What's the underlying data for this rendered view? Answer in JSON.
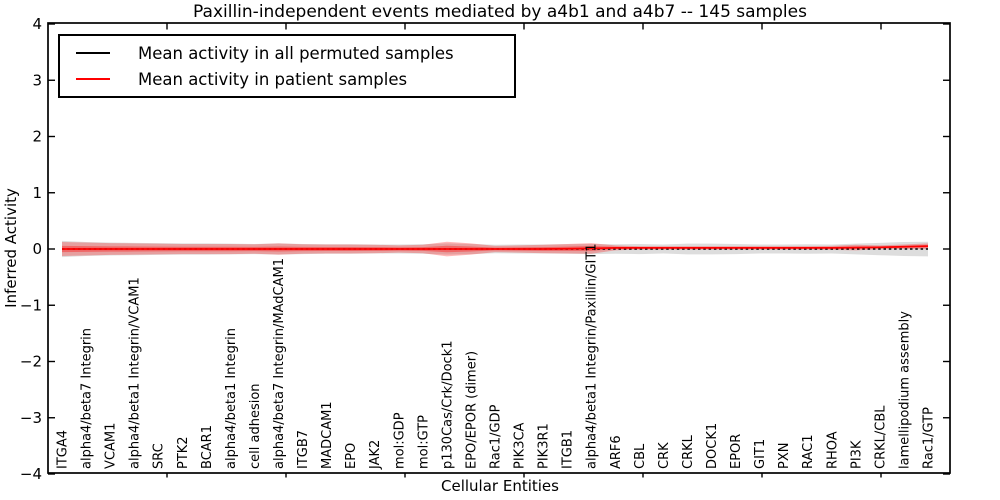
{
  "chart_data": {
    "type": "line",
    "title": "Paxillin-independent events mediated by a4b1 and a4b7 -- 145 samples",
    "xlabel": "Cellular Entities",
    "ylabel": "Inferred Activity",
    "ylim": [
      -4,
      4
    ],
    "yticks": [
      "−4",
      "−3",
      "−2",
      "−1",
      "0",
      "1",
      "2",
      "3",
      "4"
    ],
    "ytick_values": [
      -4,
      -3,
      -2,
      -1,
      0,
      1,
      2,
      3,
      4
    ],
    "grid": false,
    "legend_position": "upper left",
    "categories": [
      "ITGA4",
      "alpha4/beta7 Integrin",
      "VCAM1",
      "alpha4/beta1 Integrin/VCAM1",
      "SRC",
      "PTK2",
      "BCAR1",
      "alpha4/beta1 Integrin",
      "cell adhesion",
      "alpha4/beta7 Integrin/MAdCAM1",
      "ITGB7",
      "MADCAM1",
      "EPO",
      "JAK2",
      "mol:GDP",
      "mol:GTP",
      "p130Cas/Crk/Dock1",
      "EPO/EPOR (dimer)",
      "Rac1/GDP",
      "PIK3CA",
      "PIK3R1",
      "ITGB1",
      "alpha4/beta1 Integrin/Paxillin/GIT1",
      "ARF6",
      "CBL",
      "CRK",
      "CRKL",
      "DOCK1",
      "EPOR",
      "GIT1",
      "PXN",
      "RAC1",
      "RHOA",
      "PI3K",
      "CRKL/CBL",
      "lamellipodium assembly",
      "Rac1/GTP"
    ],
    "series": [
      {
        "name": "Mean activity in all permuted samples",
        "color": "#000000",
        "band_color": "#808080",
        "line_style": "dashed",
        "mean": [
          0,
          0,
          0,
          0,
          0,
          0,
          0,
          0,
          0,
          0,
          0,
          0,
          0,
          0,
          0,
          0,
          0,
          0,
          0,
          0,
          0,
          0,
          0,
          0,
          0,
          0,
          0,
          0,
          0,
          0,
          0,
          0,
          0,
          0,
          0,
          0,
          0
        ],
        "band": [
          0.145,
          0.125,
          0.115,
          0.11,
          0.105,
          0.1,
          0.1,
          0.095,
          0.09,
          0.1,
          0.09,
          0.085,
          0.085,
          0.08,
          0.08,
          0.085,
          0.1,
          0.09,
          0.075,
          0.08,
          0.08,
          0.085,
          0.09,
          0.085,
          0.09,
          0.08,
          0.095,
          0.095,
          0.09,
          0.08,
          0.08,
          0.085,
          0.08,
          0.095,
          0.11,
          0.125,
          0.13
        ]
      },
      {
        "name": "Mean activity in patient samples",
        "color": "#ff0000",
        "band_color": "#ff0000",
        "line_style": "solid",
        "mean": [
          0,
          0,
          0,
          0,
          0,
          0,
          0,
          0,
          0,
          0,
          0,
          0,
          0,
          0,
          0,
          0,
          0,
          0,
          0,
          0,
          0,
          0.005,
          0.01,
          0.02,
          0.02,
          0.02,
          0.02,
          0.02,
          0.02,
          0.02,
          0.02,
          0.02,
          0.02,
          0.025,
          0.03,
          0.04,
          0.05
        ],
        "band": [
          0.125,
          0.115,
          0.105,
          0.1,
          0.095,
          0.09,
          0.09,
          0.09,
          0.085,
          0.1,
          0.085,
          0.08,
          0.08,
          0.075,
          0.065,
          0.075,
          0.13,
          0.1,
          0.055,
          0.065,
          0.075,
          0.085,
          0.095,
          0.045,
          0.03,
          0.03,
          0.03,
          0.03,
          0.03,
          0.03,
          0.03,
          0.03,
          0.035,
          0.05,
          0.035,
          0.04,
          0.05
        ]
      }
    ]
  }
}
